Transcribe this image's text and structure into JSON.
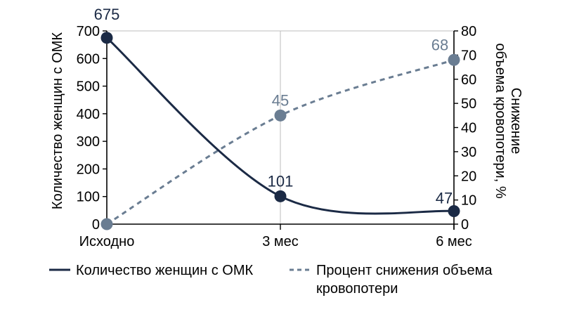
{
  "chart_data": {
    "type": "line",
    "categories": [
      "Исходно",
      "3 мес",
      "6 мес"
    ],
    "series": [
      {
        "name": "Количество женщин с ОМК",
        "axis": "left",
        "values": [
          675,
          101,
          47
        ],
        "labels": [
          "675",
          "101",
          "47"
        ],
        "color": "#1b2a45",
        "style": "solid"
      },
      {
        "name": "Процент снижения объема кровопотери",
        "axis": "right",
        "values": [
          0,
          45,
          68
        ],
        "labels": [
          "",
          "45",
          "68"
        ],
        "color": "#6a7d92",
        "style": "dashed"
      }
    ],
    "ylabel_left": "Количество женщин с ОМК",
    "ylabel_right": "Снижение объема кровопотери, %",
    "ylim_left": [
      0,
      700
    ],
    "ylim_right": [
      0,
      80
    ],
    "yticks_left": [
      "0",
      "100",
      "200",
      "300",
      "400",
      "500",
      "600",
      "700"
    ],
    "yticks_right": [
      "0",
      "10",
      "20",
      "30",
      "40",
      "50",
      "60",
      "70",
      "80"
    ],
    "grid": "vertical",
    "legend_position": "bottom",
    "legend": {
      "series1": "Количество женщин с ОМК",
      "series2_line1": "Процент снижения объема",
      "series2_line2": "кровопотери"
    }
  }
}
